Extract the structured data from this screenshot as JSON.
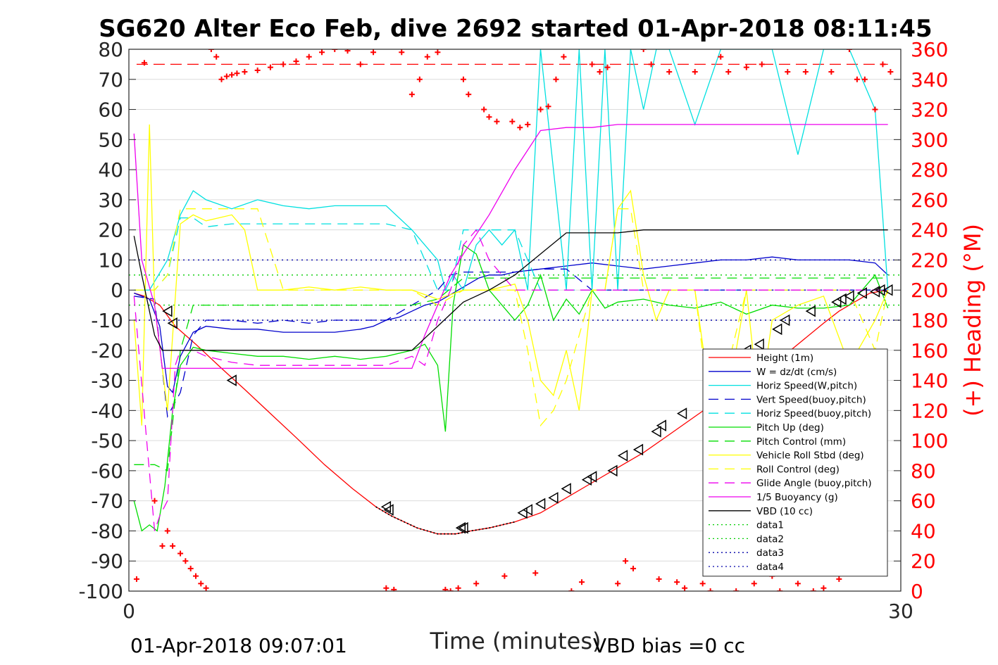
{
  "chart_data": {
    "type": "line",
    "title": "SG620 Alter Eco Feb, dive 2692 started 01-Apr-2018 08:11:45",
    "xlabel": "Time (minutes)",
    "ylabel_right": "(+) Heading (°M)",
    "xlim": [
      0,
      30
    ],
    "ylim": [
      -100,
      80
    ],
    "ylim_right": [
      0,
      360
    ],
    "x_ticks": [
      "0",
      "30"
    ],
    "y_ticks": [
      "80",
      "70",
      "60",
      "50",
      "40",
      "30",
      "20",
      "10",
      "0",
      "-10",
      "-20",
      "-30",
      "-40",
      "-50",
      "-60",
      "-70",
      "-80",
      "-90",
      "-100"
    ],
    "y_right_ticks": [
      "360",
      "340",
      "320",
      "300",
      "280",
      "260",
      "240",
      "220",
      "200",
      "180",
      "160",
      "140",
      "120",
      "100",
      "80",
      "60",
      "40",
      "20",
      "0"
    ],
    "grid": true,
    "legend_position": "bottom-right",
    "footer_left": "01-Apr-2018 09:07:01",
    "footer_right": "VBD bias =0 cc",
    "reference_lines": [
      {
        "name": "data1",
        "y": 5,
        "color": "#00cc00"
      },
      {
        "name": "data2",
        "y": -5,
        "color": "#00cc00"
      },
      {
        "name": "data3",
        "y": 10,
        "color": "#0000aa"
      },
      {
        "name": "data4",
        "y": -10,
        "color": "#0000aa"
      }
    ],
    "series": [
      {
        "name": "Height (1m)",
        "color": "#ff0000",
        "dash": "",
        "x": [
          0.2,
          0.6,
          1.2,
          1.8,
          2.6,
          3.6,
          4.5,
          5.5,
          6.5,
          7.6,
          8.7,
          9.6,
          10.2,
          11.2,
          12.0,
          12.7,
          13.3,
          14.0,
          15.0,
          16.0,
          17.0,
          18.0,
          19.0,
          20.0,
          21.0,
          22.0,
          23.0,
          24.0,
          25.0,
          26.0,
          27.0,
          27.6,
          28.2,
          28.8,
          29.5
        ],
        "values": [
          -1,
          -2,
          -5,
          -12,
          -18,
          -26,
          -33,
          -41,
          -49,
          -58,
          -66,
          -72,
          -75,
          -79,
          -81,
          -81,
          -80,
          -79,
          -77,
          -74,
          -69,
          -64,
          -59,
          -54,
          -48,
          -42,
          -36,
          -30,
          -25,
          -18,
          -11,
          -7,
          -4,
          -1,
          0
        ]
      },
      {
        "name": "W = dz/dt (cm/s)",
        "color": "#0000cc",
        "dash": "",
        "x": [
          0.2,
          0.8,
          1.2,
          1.5,
          1.7,
          2.0,
          2.5,
          3.0,
          4.0,
          5.0,
          6.0,
          7.0,
          8.0,
          9.0,
          9.5,
          10.0,
          10.5,
          11.0,
          11.5,
          12.0,
          12.4,
          12.8,
          13.2,
          13.6,
          14.0,
          14.5,
          15.0,
          16.0,
          17.0,
          18.0,
          19.0,
          20.0,
          21.0,
          22.0,
          23.0,
          24.0,
          25.0,
          26.0,
          27.0,
          28.0,
          29.0,
          29.5
        ],
        "values": [
          -1,
          -3,
          -12,
          -32,
          -34,
          -22,
          -14,
          -12,
          -13,
          -13,
          -14,
          -14,
          -14,
          -13,
          -12,
          -10,
          -9,
          -7,
          -5,
          -4,
          -2,
          0,
          2,
          4,
          5,
          5,
          6,
          7,
          8,
          9,
          8,
          7,
          8,
          9,
          10,
          10,
          11,
          10,
          10,
          10,
          9,
          5
        ]
      },
      {
        "name": "Horiz Speed(W,pitch)",
        "color": "#00e0e0",
        "dash": "",
        "x": [
          0.2,
          0.8,
          1.5,
          2.0,
          2.5,
          3.0,
          4.0,
          5.0,
          6.0,
          7.0,
          8.0,
          9.0,
          10.0,
          11.0,
          12.0,
          12.3,
          12.6,
          13.0,
          13.5,
          14.0,
          14.5,
          15.0,
          15.5,
          16.0,
          16.5,
          17.0,
          17.5,
          18.0,
          18.5,
          19.0,
          19.5,
          20.0,
          20.5,
          21.0,
          22.0,
          23.0,
          24.0,
          25.0,
          26.0,
          27.0,
          28.0,
          29.0,
          29.5
        ],
        "values": [
          0,
          0,
          10,
          25,
          33,
          30,
          27,
          30,
          28,
          27,
          28,
          28,
          28,
          20,
          10,
          0,
          5,
          0,
          15,
          20,
          15,
          20,
          0,
          80,
          40,
          0,
          80,
          0,
          80,
          0,
          80,
          60,
          80,
          80,
          55,
          80,
          80,
          80,
          45,
          80,
          80,
          60,
          0
        ]
      },
      {
        "name": "Vert Speed(buoy,pitch)",
        "color": "#0000cc",
        "dash": "14,9",
        "x": [
          0.2,
          1.0,
          1.5,
          2.0,
          2.5,
          3.0,
          4.0,
          5.0,
          6.0,
          7.0,
          8.0,
          9.0,
          10.0,
          11.0,
          12.0,
          12.5,
          13.0,
          14.0,
          15.0,
          16.0,
          17.0,
          18.0,
          19.0,
          20.0,
          21.0,
          22.0,
          23.0,
          24.0,
          25.0,
          26.0,
          27.0,
          28.0,
          29.0,
          29.5
        ],
        "values": [
          -2,
          -3,
          -42,
          -34,
          -15,
          -10,
          -10,
          -11,
          -10,
          -11,
          -10,
          -10,
          -10,
          -5,
          0,
          5,
          6,
          6,
          6,
          7,
          7,
          0,
          0,
          0,
          0,
          0,
          0,
          0,
          0,
          0,
          0,
          0,
          0,
          0
        ]
      },
      {
        "name": "Horiz Speed(buoy,pitch)",
        "color": "#00e0e0",
        "dash": "14,9",
        "x": [
          0.2,
          1.0,
          1.5,
          2.0,
          2.5,
          3.0,
          4.0,
          5.0,
          6.0,
          7.0,
          8.0,
          9.0,
          10.0,
          11.0,
          11.5,
          12.0,
          12.5,
          13.0,
          14.0,
          15.0,
          16.0,
          17.0,
          18.0,
          19.0,
          20.0,
          21.0,
          22.0,
          23.0,
          24.0,
          25.0,
          26.0,
          27.0,
          28.0,
          29.0,
          29.5
        ],
        "values": [
          0,
          0,
          5,
          24,
          24,
          21,
          22,
          22,
          22,
          22,
          22,
          22,
          22,
          20,
          10,
          0,
          0,
          20,
          20,
          20,
          0,
          0,
          0,
          0,
          0,
          0,
          0,
          0,
          0,
          0,
          0,
          0,
          0,
          0,
          0
        ]
      },
      {
        "name": "Pitch Up (deg)",
        "color": "#00dd00",
        "dash": "",
        "x": [
          0.2,
          0.5,
          0.8,
          1.1,
          1.4,
          1.7,
          2.0,
          2.5,
          3.0,
          4.0,
          5.0,
          6.0,
          7.0,
          8.0,
          9.0,
          10.0,
          11.0,
          11.5,
          12.0,
          12.3,
          12.6,
          13.0,
          13.5,
          14.0,
          14.5,
          15.0,
          15.5,
          16.0,
          16.5,
          17.0,
          17.5,
          18.0,
          18.5,
          19.0,
          20.0,
          21.0,
          22.0,
          23.0,
          24.0,
          25.0,
          26.0,
          27.0,
          28.0,
          29.0,
          29.5
        ],
        "values": [
          -70,
          -80,
          -78,
          -80,
          -65,
          -40,
          -25,
          -19,
          -20,
          -21,
          -22,
          -22,
          -23,
          -22,
          -23,
          -22,
          -20,
          -18,
          -25,
          -47,
          -5,
          15,
          12,
          0,
          -5,
          -10,
          -5,
          5,
          -10,
          -3,
          -8,
          0,
          -6,
          -4,
          -3,
          -5,
          -6,
          -4,
          -8,
          -5,
          -6,
          -6,
          -5,
          5,
          -6
        ]
      },
      {
        "name": "Pitch Control (mm)",
        "color": "#00dd00",
        "dash": "14,9",
        "x": [
          0.2,
          1.0,
          1.5,
          2.0,
          2.5,
          3.0,
          5.0,
          8.0,
          10.0,
          11.0,
          12.0,
          13.0,
          15.0,
          18.0,
          21.0,
          24.0,
          27.0,
          29.5
        ],
        "values": [
          -58,
          -58,
          -60,
          -20,
          -5,
          -5,
          -5,
          -5,
          -5,
          -5,
          -3,
          4,
          4,
          4,
          4,
          4,
          4,
          4
        ]
      },
      {
        "name": "Vehicle Roll Stbd (deg)",
        "color": "#ffff00",
        "dash": "",
        "x": [
          0.2,
          0.5,
          0.8,
          1.0,
          1.5,
          2.0,
          2.5,
          3.0,
          4.0,
          4.5,
          5.0,
          6.0,
          7.0,
          8.0,
          9.0,
          10.0,
          11.0,
          12.0,
          13.0,
          14.0,
          15.0,
          15.5,
          16.0,
          16.5,
          17.0,
          17.5,
          18.0,
          18.5,
          19.0,
          19.5,
          20.0,
          20.5,
          21.0,
          22.0,
          22.5,
          23.0,
          23.5,
          24.0,
          24.5,
          25.0,
          26.0,
          27.0,
          28.0,
          29.0,
          29.5
        ],
        "values": [
          -10,
          -45,
          55,
          -5,
          -40,
          22,
          25,
          23,
          25,
          20,
          0,
          0,
          1,
          0,
          1,
          0,
          0,
          -3,
          0,
          0,
          2,
          -10,
          -30,
          -35,
          -20,
          -40,
          0,
          0,
          27,
          33,
          5,
          -10,
          0,
          0,
          -30,
          -42,
          -25,
          0,
          -40,
          -10,
          -5,
          -2,
          -25,
          -10,
          0
        ]
      },
      {
        "name": "Roll Control (deg)",
        "color": "#ffff00",
        "dash": "14,9",
        "x": [
          0.2,
          1.0,
          1.5,
          2.0,
          2.5,
          3.0,
          4.0,
          5.0,
          6.0,
          8.0,
          10.0,
          11.0,
          12.0,
          13.0,
          14.0,
          15.0,
          15.5,
          16.0,
          16.5,
          17.0,
          18.0,
          18.5,
          19.0,
          19.5,
          20.0,
          21.0,
          22.0,
          22.5,
          23.0,
          24.0,
          25.0,
          26.0,
          27.0,
          28.0,
          29.0,
          29.5
        ],
        "values": [
          0,
          0,
          5,
          27,
          27,
          27,
          27,
          27,
          0,
          0,
          0,
          0,
          -5,
          0,
          0,
          0,
          -20,
          -45,
          -40,
          -30,
          0,
          0,
          27,
          27,
          0,
          0,
          0,
          -35,
          -35,
          0,
          0,
          0,
          0,
          0,
          -20,
          0
        ]
      },
      {
        "name": "Glide Angle (buoy,pitch)",
        "color": "#ee00ee",
        "dash": "14,9",
        "x": [
          0.2,
          1.0,
          1.2,
          1.5,
          1.8,
          2.0,
          2.5,
          3.0,
          4.0,
          5.0,
          6.0,
          7.0,
          8.0,
          9.0,
          10.0,
          11.0,
          11.5,
          12.0,
          12.5,
          13.0,
          13.5,
          14.0,
          15.0,
          16.0,
          17.0,
          18.0,
          19.0,
          20.0,
          21.0,
          22.0,
          23.0,
          24.0,
          25.0,
          26.0,
          27.0,
          28.0,
          29.0,
          29.5
        ],
        "values": [
          -2,
          -80,
          -75,
          -70,
          -25,
          -20,
          -20,
          -22,
          -24,
          -25,
          -25,
          -25,
          -25,
          -25,
          -25,
          -22,
          -25,
          -10,
          0,
          15,
          20,
          10,
          0,
          0,
          0,
          0,
          0,
          0,
          0,
          0,
          0,
          0,
          0,
          0,
          0,
          0,
          0,
          0
        ]
      },
      {
        "name": "1/5 Buoyancy (g)",
        "color": "#ee00ee",
        "dash": "",
        "x": [
          0.2,
          0.5,
          1.0,
          1.3,
          2.0,
          4.0,
          6.0,
          8.0,
          10.0,
          11.0,
          11.5,
          12.0,
          12.5,
          13.0,
          14.0,
          15.0,
          16.0,
          17.0,
          18.0,
          19.0,
          20.0,
          21.0,
          22.0,
          24.0,
          26.0,
          28.0,
          29.5
        ],
        "values": [
          52,
          10,
          -5,
          -26,
          -26,
          -26,
          -26,
          -26,
          -26,
          -26,
          -15,
          -5,
          5,
          12,
          25,
          40,
          53,
          54,
          54,
          55,
          55,
          55,
          55,
          55,
          55,
          55,
          55
        ]
      },
      {
        "name": "VBD (10 cc)",
        "color": "#000000",
        "dash": "",
        "x": [
          0.2,
          0.5,
          1.0,
          1.3,
          2.0,
          4.0,
          6.0,
          8.0,
          10.0,
          11.0,
          11.5,
          12.0,
          12.5,
          13.0,
          14.0,
          15.0,
          16.0,
          17.0,
          18.0,
          19.0,
          20.0,
          22.0,
          24.0,
          26.0,
          28.0,
          29.5
        ],
        "values": [
          18,
          5,
          -15,
          -20,
          -20,
          -20,
          -20,
          -20,
          -20,
          -20,
          -16,
          -12,
          -8,
          -4,
          0,
          5,
          12,
          19,
          19,
          19,
          20,
          20,
          20,
          20,
          20,
          20
        ]
      }
    ],
    "legend_extra": [
      {
        "name": "data1",
        "color": "#00cc00"
      },
      {
        "name": "data2",
        "color": "#00cc00"
      },
      {
        "name": "data3",
        "color": "#0000aa"
      },
      {
        "name": "data4",
        "color": "#0000aa"
      }
    ],
    "markers_triangle": {
      "x": [
        1.5,
        1.7,
        4.0,
        10.0,
        10.1,
        12.9,
        13.0,
        15.3,
        15.5,
        16.0,
        16.5,
        17.0,
        17.8,
        18.0,
        18.8,
        19.2,
        19.8,
        20.5,
        20.7,
        21.5,
        23.2,
        23.6,
        24.0,
        24.5,
        25.2,
        25.5,
        26.5,
        27.5,
        27.7,
        28.0,
        28.5,
        29.0,
        29.2,
        29.5
      ],
      "values": [
        -7,
        -11,
        -30,
        -72,
        -73,
        -79,
        -79,
        -74,
        -73,
        -71,
        -69,
        -66,
        -63,
        -62,
        -60,
        -55,
        -53,
        -47,
        -45,
        -41,
        -30,
        -25,
        -20,
        -18,
        -13,
        -10,
        -7,
        -4,
        -3,
        -2,
        -1,
        -0.5,
        0,
        0
      ]
    },
    "heading_points": {
      "series_name": "Heading",
      "color": "#ff0000",
      "x": [
        0.3,
        0.6,
        1.0,
        1.3,
        1.5,
        1.7,
        2.0,
        2.2,
        2.4,
        2.6,
        2.8,
        3.0,
        3.2,
        3.4,
        3.6,
        3.8,
        4.0,
        4.2,
        4.5,
        5.0,
        5.5,
        6.0,
        6.5,
        7.0,
        7.5,
        8.0,
        8.5,
        9.0,
        9.5,
        10.0,
        10.3,
        10.6,
        11.0,
        11.3,
        11.6,
        12.0,
        12.3,
        12.5,
        12.8,
        13.0,
        13.2,
        13.5,
        13.8,
        14.0,
        14.3,
        14.6,
        14.9,
        15.2,
        15.5,
        15.8,
        16.0,
        16.3,
        16.6,
        16.9,
        17.2,
        17.6,
        18.0,
        18.3,
        18.6,
        19.0,
        19.3,
        19.6,
        20.0,
        20.3,
        20.6,
        21.0,
        21.3,
        21.6,
        22.0,
        22.3,
        22.6,
        23.0,
        23.3,
        23.6,
        24.0,
        24.3,
        24.6,
        25.0,
        25.3,
        25.6,
        26.0,
        26.3,
        26.6,
        27.0,
        27.3,
        27.6,
        28.0,
        28.3,
        28.6,
        29.0,
        29.3,
        29.6
      ],
      "values": [
        8,
        351,
        60,
        30,
        40,
        30,
        25,
        20,
        15,
        10,
        5,
        2,
        360,
        355,
        340,
        342,
        343,
        344,
        345,
        346,
        348,
        350,
        352,
        355,
        358,
        360,
        359,
        350,
        358,
        2,
        1,
        358,
        330,
        340,
        355,
        358,
        1,
        0,
        2,
        340,
        330,
        5,
        320,
        315,
        312,
        10,
        312,
        308,
        310,
        12,
        320,
        322,
        340,
        355,
        0,
        6,
        350,
        345,
        348,
        5,
        20,
        15,
        360,
        350,
        8,
        345,
        6,
        2,
        345,
        5,
        0,
        355,
        345,
        0,
        348,
        5,
        350,
        10,
        0,
        345,
        5,
        345,
        0,
        2,
        345,
        8,
        360,
        340,
        340,
        320,
        350,
        345
      ]
    }
  }
}
